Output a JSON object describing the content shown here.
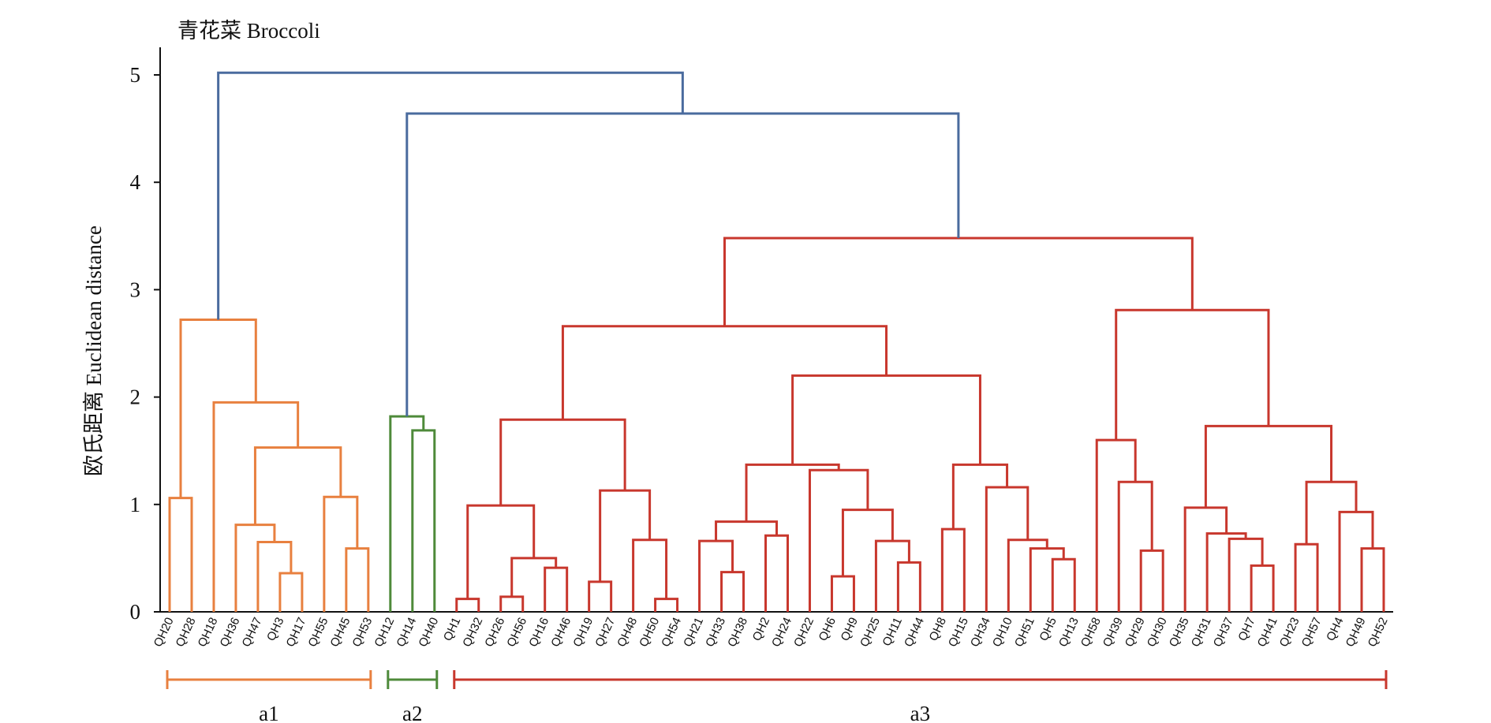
{
  "chart_data": {
    "type": "dendrogram",
    "title": "青花菜 Broccoli",
    "ylabel": "欧氏距离 Euclidean distance",
    "ylim": [
      0,
      5.2
    ],
    "yticks": [
      "0",
      "1",
      "2",
      "3",
      "4",
      "5"
    ],
    "leaves": [
      "QH20",
      "QH28",
      "QH18",
      "QH36",
      "QH47",
      "QH3",
      "QH17",
      "QH55",
      "QH45",
      "QH53",
      "QH12",
      "QH14",
      "QH40",
      "QH1",
      "QH32",
      "QH26",
      "QH56",
      "QH16",
      "QH46",
      "QH19",
      "QH27",
      "QH48",
      "QH50",
      "QH54",
      "QH21",
      "QH33",
      "QH38",
      "QH2",
      "QH24",
      "QH22",
      "QH6",
      "QH9",
      "QH25",
      "QH11",
      "QH44",
      "QH8",
      "QH15",
      "QH34",
      "QH10",
      "QH51",
      "QH5",
      "QH13",
      "QH58",
      "QH39",
      "QH29",
      "QH30",
      "QH35",
      "QH31",
      "QH37",
      "QH7",
      "QH41",
      "QH23",
      "QH57",
      "QH4",
      "QH49",
      "QH52"
    ],
    "merges": [
      {
        "left": "QH20",
        "right": "QH28",
        "height": 1.06,
        "id": "n1",
        "group": "a1"
      },
      {
        "left": "QH3",
        "right": "QH17",
        "height": 0.36,
        "id": "n2",
        "group": "a1"
      },
      {
        "left": "QH47",
        "right": "n2",
        "height": 0.65,
        "id": "n3",
        "group": "a1"
      },
      {
        "left": "QH36",
        "right": "n3",
        "height": 0.81,
        "id": "n4",
        "group": "a1"
      },
      {
        "left": "QH45",
        "right": "QH53",
        "height": 0.59,
        "id": "n5",
        "group": "a1"
      },
      {
        "left": "QH55",
        "right": "n5",
        "height": 1.07,
        "id": "n6",
        "group": "a1"
      },
      {
        "left": "n4",
        "right": "n6",
        "height": 1.53,
        "id": "n7",
        "group": "a1"
      },
      {
        "left": "QH18",
        "right": "n7",
        "height": 1.95,
        "id": "n8",
        "group": "a1"
      },
      {
        "left": "n1",
        "right": "n8",
        "height": 2.72,
        "id": "n9",
        "group": "a1"
      },
      {
        "left": "QH14",
        "right": "QH40",
        "height": 1.69,
        "id": "n10",
        "group": "a2"
      },
      {
        "left": "QH12",
        "right": "n10",
        "height": 1.82,
        "id": "n11",
        "group": "a2"
      },
      {
        "left": "QH1",
        "right": "QH32",
        "height": 0.12,
        "id": "n12",
        "group": "a3"
      },
      {
        "left": "QH26",
        "right": "QH56",
        "height": 0.14,
        "id": "n13",
        "group": "a3"
      },
      {
        "left": "QH16",
        "right": "QH46",
        "height": 0.41,
        "id": "n14",
        "group": "a3"
      },
      {
        "left": "n13",
        "right": "n14",
        "height": 0.5,
        "id": "n15",
        "group": "a3"
      },
      {
        "left": "n12",
        "right": "n15",
        "height": 0.99,
        "id": "n16",
        "group": "a3"
      },
      {
        "left": "QH19",
        "right": "QH27",
        "height": 0.28,
        "id": "n17",
        "group": "a3"
      },
      {
        "left": "QH50",
        "right": "QH54",
        "height": 0.12,
        "id": "n18",
        "group": "a3"
      },
      {
        "left": "QH48",
        "right": "n18",
        "height": 0.67,
        "id": "n19",
        "group": "a3"
      },
      {
        "left": "n17",
        "right": "n19",
        "height": 1.13,
        "id": "n20",
        "group": "a3"
      },
      {
        "left": "n16",
        "right": "n20",
        "height": 1.79,
        "id": "n21",
        "group": "a3"
      },
      {
        "left": "QH33",
        "right": "QH38",
        "height": 0.37,
        "id": "n22",
        "group": "a3"
      },
      {
        "left": "QH21",
        "right": "n22",
        "height": 0.66,
        "id": "n23",
        "group": "a3"
      },
      {
        "left": "QH2",
        "right": "QH24",
        "height": 0.71,
        "id": "n24",
        "group": "a3"
      },
      {
        "left": "n23",
        "right": "n24",
        "height": 0.84,
        "id": "n25",
        "group": "a3"
      },
      {
        "left": "QH6",
        "right": "QH9",
        "height": 0.33,
        "id": "n26",
        "group": "a3"
      },
      {
        "left": "QH11",
        "right": "QH44",
        "height": 0.46,
        "id": "n27",
        "group": "a3"
      },
      {
        "left": "QH25",
        "right": "n27",
        "height": 0.66,
        "id": "n28",
        "group": "a3"
      },
      {
        "left": "n26",
        "right": "n28",
        "height": 0.95,
        "id": "n29",
        "group": "a3"
      },
      {
        "left": "QH22",
        "right": "n29",
        "height": 1.32,
        "id": "n30",
        "group": "a3"
      },
      {
        "left": "n25",
        "right": "n30",
        "height": 1.37,
        "id": "n31",
        "group": "a3"
      },
      {
        "left": "QH8",
        "right": "QH15",
        "height": 0.77,
        "id": "n32",
        "group": "a3"
      },
      {
        "left": "QH5",
        "right": "QH13",
        "height": 0.49,
        "id": "n33",
        "group": "a3"
      },
      {
        "left": "QH51",
        "right": "n33",
        "height": 0.59,
        "id": "n34",
        "group": "a3"
      },
      {
        "left": "QH10",
        "right": "n34",
        "height": 0.67,
        "id": "n35",
        "group": "a3"
      },
      {
        "left": "QH34",
        "right": "n35",
        "height": 1.16,
        "id": "n36",
        "group": "a3"
      },
      {
        "left": "n32",
        "right": "n36",
        "height": 1.37,
        "id": "n37",
        "group": "a3"
      },
      {
        "left": "n31",
        "right": "n37",
        "height": 2.2,
        "id": "n38",
        "group": "a3"
      },
      {
        "left": "n21",
        "right": "n38",
        "height": 2.66,
        "id": "n39",
        "group": "a3"
      },
      {
        "left": "QH29",
        "right": "QH30",
        "height": 0.57,
        "id": "n40",
        "group": "a3"
      },
      {
        "left": "QH39",
        "right": "n40",
        "height": 1.21,
        "id": "n41",
        "group": "a3"
      },
      {
        "left": "QH58",
        "right": "n41",
        "height": 1.6,
        "id": "n42",
        "group": "a3"
      },
      {
        "left": "QH7",
        "right": "QH41",
        "height": 0.43,
        "id": "n43",
        "group": "a3"
      },
      {
        "left": "QH37",
        "right": "n43",
        "height": 0.68,
        "id": "n44",
        "group": "a3"
      },
      {
        "left": "QH31",
        "right": "n44",
        "height": 0.73,
        "id": "n45",
        "group": "a3"
      },
      {
        "left": "QH35",
        "right": "n45",
        "height": 0.97,
        "id": "n46",
        "group": "a3"
      },
      {
        "left": "QH23",
        "right": "QH57",
        "height": 0.63,
        "id": "n47",
        "group": "a3"
      },
      {
        "left": "QH49",
        "right": "QH52",
        "height": 0.59,
        "id": "n48",
        "group": "a3"
      },
      {
        "left": "QH4",
        "right": "n48",
        "height": 0.93,
        "id": "n49",
        "group": "a3"
      },
      {
        "left": "n47",
        "right": "n49",
        "height": 1.21,
        "id": "n50",
        "group": "a3"
      },
      {
        "left": "n46",
        "right": "n50",
        "height": 1.73,
        "id": "n51",
        "group": "a3"
      },
      {
        "left": "n42",
        "right": "n51",
        "height": 2.81,
        "id": "n52",
        "group": "a3"
      },
      {
        "left": "n39",
        "right": "n52",
        "height": 3.48,
        "id": "n53",
        "group": "a3"
      },
      {
        "left": "n11",
        "right": "n53",
        "height": 4.64,
        "id": "n54",
        "group": "root"
      },
      {
        "left": "n9",
        "right": "n54",
        "height": 5.02,
        "id": "n55",
        "group": "root"
      }
    ],
    "groups": [
      {
        "label": "a1",
        "first": "QH20",
        "last": "QH53",
        "color": "#E8803F"
      },
      {
        "label": "a2",
        "first": "QH12",
        "last": "QH40",
        "color": "#4E8A3A"
      },
      {
        "label": "a3",
        "first": "QH1",
        "last": "QH52",
        "color": "#C8372D"
      }
    ],
    "root_color": "#4A6B9E",
    "grid": false
  }
}
